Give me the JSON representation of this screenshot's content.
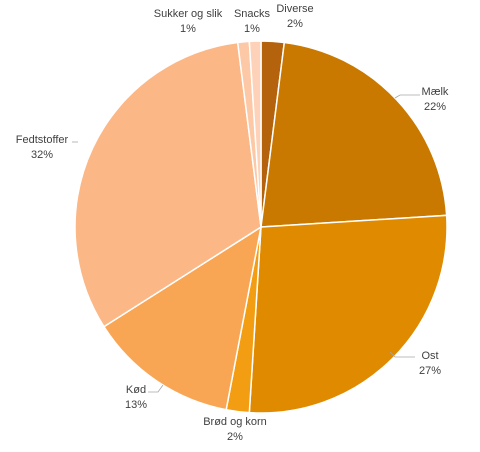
{
  "chart_data": {
    "type": "pie",
    "categories": [
      "Diverse",
      "Mælk",
      "Ost",
      "Brød og korn",
      "Kød",
      "Fedtstoffer",
      "Sukker og slik",
      "Snacks"
    ],
    "values": [
      2,
      22,
      27,
      2,
      13,
      32,
      1,
      1
    ],
    "value_labels": [
      "2%",
      "22%",
      "27%",
      "2%",
      "13%",
      "32%",
      "1%",
      "1%"
    ],
    "colors": [
      "#b4620c",
      "#c97800",
      "#e08a00",
      "#f29d12",
      "#f9a654",
      "#fbb786",
      "#fcc8a6",
      "#fdd2b8"
    ]
  }
}
